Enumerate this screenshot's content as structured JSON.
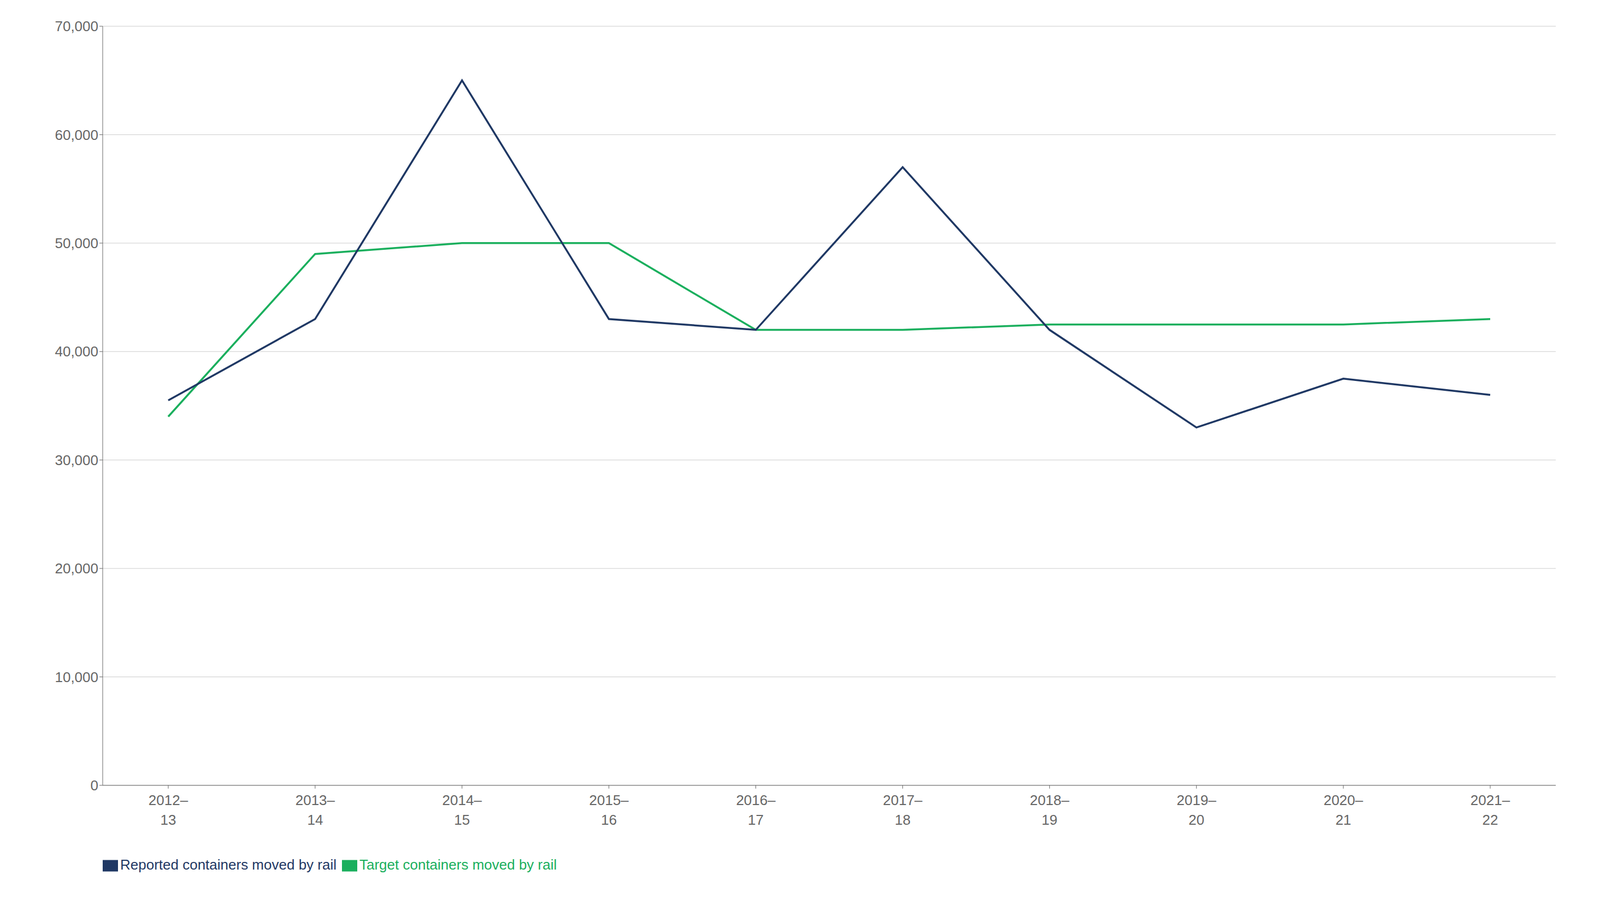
{
  "chart_data": {
    "type": "line",
    "categories": [
      "2012–\n13",
      "2013–\n14",
      "2014–\n15",
      "2015–\n16",
      "2016–\n17",
      "2017–\n18",
      "2018–\n19",
      "2019–\n20",
      "2020–\n21",
      "2021–\n22"
    ],
    "series": [
      {
        "name": "Target containers moved by rail",
        "color": "#1AAF5D",
        "values": [
          34000,
          49000,
          50000,
          50000,
          42000,
          42000,
          42500,
          42500,
          42500,
          43000
        ]
      },
      {
        "name": "Reported containers moved by rail",
        "color": "#1F3864",
        "values": [
          35500,
          43000,
          65000,
          43000,
          42000,
          57000,
          42000,
          33000,
          37500,
          36000
        ]
      }
    ],
    "ylim": [
      0,
      70000
    ],
    "yticks": [
      0,
      {
        "value": 10000,
        "label": "10,000"
      },
      {
        "value": 20000,
        "label": "20,000"
      },
      {
        "value": 30000,
        "label": "30,000"
      },
      {
        "value": 40000,
        "label": "40,000"
      },
      {
        "value": 50000,
        "label": "50,000"
      },
      {
        "value": 60000,
        "label": "60,000"
      },
      {
        "value": 70000,
        "label": "70,000"
      }
    ],
    "grid": true,
    "legend": "lower left"
  }
}
